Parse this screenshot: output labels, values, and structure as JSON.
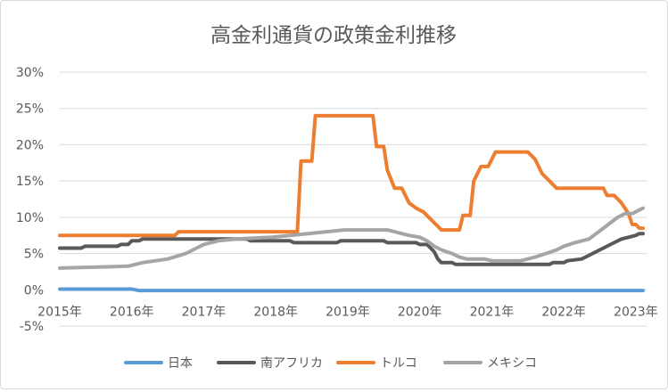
{
  "chart_data": {
    "type": "line",
    "title": "高金利通貨の政策金利推移",
    "xlabel": "",
    "ylabel": "",
    "ylim": [
      -5,
      30
    ],
    "yticks": [
      -5,
      0,
      5,
      10,
      15,
      20,
      25,
      30
    ],
    "ytick_labels": [
      "-5%",
      "0%",
      "5%",
      "10%",
      "15%",
      "20%",
      "25%",
      "30%"
    ],
    "xlim": [
      2015,
      2023.15
    ],
    "xticks": [
      2015,
      2016,
      2017,
      2018,
      2019,
      2020,
      2021,
      2022,
      2023
    ],
    "xtick_labels": [
      "2015年",
      "2016年",
      "2017年",
      "2018年",
      "2019年",
      "2020年",
      "2021年",
      "2022年",
      "2023年"
    ],
    "grid": true,
    "legend_position": "bottom",
    "series": [
      {
        "name": "日本",
        "color": "#5b9bd5",
        "points": [
          [
            2015,
            0.1
          ],
          [
            2016.0,
            0.1
          ],
          [
            2016.1,
            -0.1
          ],
          [
            2023.1,
            -0.1
          ]
        ]
      },
      {
        "name": "南アフリカ",
        "color": "#595959",
        "points": [
          [
            2015,
            5.75
          ],
          [
            2015.3,
            5.75
          ],
          [
            2015.35,
            6.0
          ],
          [
            2015.8,
            6.0
          ],
          [
            2015.85,
            6.25
          ],
          [
            2015.95,
            6.25
          ],
          [
            2016.0,
            6.75
          ],
          [
            2016.1,
            6.75
          ],
          [
            2016.15,
            7.0
          ],
          [
            2017.6,
            7.0
          ],
          [
            2017.65,
            6.75
          ],
          [
            2018.2,
            6.75
          ],
          [
            2018.25,
            6.5
          ],
          [
            2018.85,
            6.5
          ],
          [
            2018.9,
            6.75
          ],
          [
            2019.5,
            6.75
          ],
          [
            2019.55,
            6.5
          ],
          [
            2019.95,
            6.5
          ],
          [
            2020.0,
            6.25
          ],
          [
            2020.1,
            6.25
          ],
          [
            2020.2,
            5.25
          ],
          [
            2020.25,
            4.25
          ],
          [
            2020.3,
            3.75
          ],
          [
            2020.45,
            3.75
          ],
          [
            2020.5,
            3.5
          ],
          [
            2021.8,
            3.5
          ],
          [
            2021.85,
            3.75
          ],
          [
            2022.0,
            3.75
          ],
          [
            2022.05,
            4.0
          ],
          [
            2022.25,
            4.25
          ],
          [
            2022.35,
            4.75
          ],
          [
            2022.5,
            5.5
          ],
          [
            2022.65,
            6.25
          ],
          [
            2022.8,
            7.0
          ],
          [
            2022.9,
            7.25
          ],
          [
            2023.0,
            7.5
          ],
          [
            2023.05,
            7.75
          ],
          [
            2023.1,
            7.75
          ]
        ]
      },
      {
        "name": "トルコ",
        "color": "#ed7d31",
        "points": [
          [
            2015,
            7.5
          ],
          [
            2016.6,
            7.5
          ],
          [
            2016.65,
            8.0
          ],
          [
            2018.3,
            8.0
          ],
          [
            2018.35,
            17.75
          ],
          [
            2018.5,
            17.75
          ],
          [
            2018.55,
            24.0
          ],
          [
            2019.35,
            24.0
          ],
          [
            2019.4,
            19.75
          ],
          [
            2019.5,
            19.75
          ],
          [
            2019.55,
            16.5
          ],
          [
            2019.65,
            14.0
          ],
          [
            2019.75,
            14.0
          ],
          [
            2019.85,
            12.0
          ],
          [
            2019.95,
            11.25
          ],
          [
            2020.05,
            10.75
          ],
          [
            2020.15,
            9.75
          ],
          [
            2020.25,
            8.75
          ],
          [
            2020.3,
            8.25
          ],
          [
            2020.55,
            8.25
          ],
          [
            2020.6,
            10.25
          ],
          [
            2020.7,
            10.25
          ],
          [
            2020.75,
            15.0
          ],
          [
            2020.85,
            17.0
          ],
          [
            2020.95,
            17.0
          ],
          [
            2021.05,
            19.0
          ],
          [
            2021.5,
            19.0
          ],
          [
            2021.6,
            18.0
          ],
          [
            2021.7,
            16.0
          ],
          [
            2021.8,
            15.0
          ],
          [
            2021.9,
            14.0
          ],
          [
            2022.55,
            14.0
          ],
          [
            2022.6,
            13.0
          ],
          [
            2022.7,
            13.0
          ],
          [
            2022.8,
            12.0
          ],
          [
            2022.9,
            10.5
          ],
          [
            2022.95,
            9.0
          ],
          [
            2023.0,
            9.0
          ],
          [
            2023.05,
            8.5
          ],
          [
            2023.1,
            8.5
          ]
        ]
      },
      {
        "name": "メキシコ",
        "color": "#a5a5a5",
        "points": [
          [
            2015,
            3.0
          ],
          [
            2015.95,
            3.25
          ],
          [
            2016.15,
            3.75
          ],
          [
            2016.5,
            4.25
          ],
          [
            2016.75,
            5.0
          ],
          [
            2016.9,
            5.75
          ],
          [
            2017.0,
            6.25
          ],
          [
            2017.2,
            6.75
          ],
          [
            2017.45,
            7.0
          ],
          [
            2017.95,
            7.25
          ],
          [
            2018.2,
            7.5
          ],
          [
            2018.45,
            7.75
          ],
          [
            2018.95,
            8.25
          ],
          [
            2019.55,
            8.25
          ],
          [
            2019.65,
            8.0
          ],
          [
            2019.75,
            7.75
          ],
          [
            2019.85,
            7.5
          ],
          [
            2020.0,
            7.25
          ],
          [
            2020.1,
            6.75
          ],
          [
            2020.2,
            6.0
          ],
          [
            2020.3,
            5.5
          ],
          [
            2020.45,
            5.0
          ],
          [
            2020.55,
            4.5
          ],
          [
            2020.65,
            4.25
          ],
          [
            2020.9,
            4.25
          ],
          [
            2021.0,
            4.0
          ],
          [
            2021.4,
            4.0
          ],
          [
            2021.5,
            4.25
          ],
          [
            2021.6,
            4.5
          ],
          [
            2021.75,
            5.0
          ],
          [
            2021.9,
            5.5
          ],
          [
            2022.0,
            6.0
          ],
          [
            2022.15,
            6.5
          ],
          [
            2022.35,
            7.0
          ],
          [
            2022.45,
            7.75
          ],
          [
            2022.55,
            8.5
          ],
          [
            2022.65,
            9.25
          ],
          [
            2022.75,
            10.0
          ],
          [
            2022.85,
            10.5
          ],
          [
            2022.95,
            10.5
          ],
          [
            2023.05,
            11.0
          ],
          [
            2023.1,
            11.25
          ]
        ]
      }
    ]
  }
}
